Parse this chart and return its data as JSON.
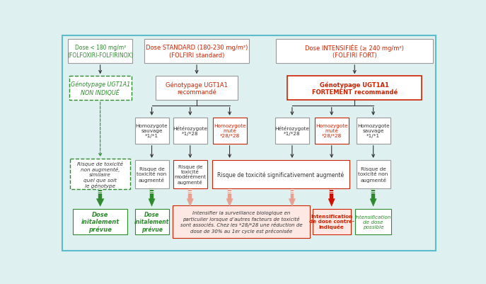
{
  "bg_color": "#dff0f0",
  "outer_border_color": "#5bbccc",
  "col1_header_text": "Dose < 180 mg/m²\n(FOLFOXIRI-FOLFIRINOX)",
  "col2_header_text": "Dose STANDARD (180-230 mg/m²)\n(FOLFIRI standard)",
  "col3_header_text": "Dose INTENSIFIÉE (≥ 240 mg/m²)\n(FOLFIRI FORT)",
  "col1_header_color": "#2d8b2d",
  "col2_header_color": "#cc2200",
  "col3_header_color": "#cc2200",
  "col1_box2_text": "Génotypage UGT1A1\nNON INDIQUÉ",
  "col1_box2_text_color": "#2d8b2d",
  "col2_box2_text": "Génotypage UGT1A1\nrecommandé",
  "col2_box2_text_color": "#cc2200",
  "col3_box2_text": "Génotypage UGT1A1\nFORTEMENT recommandé",
  "col3_box2_text_color": "#cc2200",
  "col3_box2_border_color": "#cc2200",
  "risk_col1_text": "Risque de toxicité\nnon augmenté,\nsimilaire\nquel que soit\nle génotype",
  "result_col1_text": "Dose\ninitalement\nprévue",
  "result_col2_text": "Dose\ninitalement\nprévue",
  "result_center_text": "Intensifier la surveillance biologique en\nparticulier lorsque d’autres facteurs de toxicité\nsont associés. Chez les *28/*28 une réduction de\ndose de 30% au 1er cycle est préconisée",
  "result_red_text": "Intensification\nde dose contre-\nindiquée",
  "result_green_text": "Intensification\nde dose\npossible",
  "green": "#2d8b2d",
  "red": "#cc2200",
  "gray_border": "#999999",
  "white": "#ffffff",
  "salmon_bg": "#fde8e3",
  "salmon_arrow": "#e8a090",
  "dark_red_arrow": "#cc1100"
}
